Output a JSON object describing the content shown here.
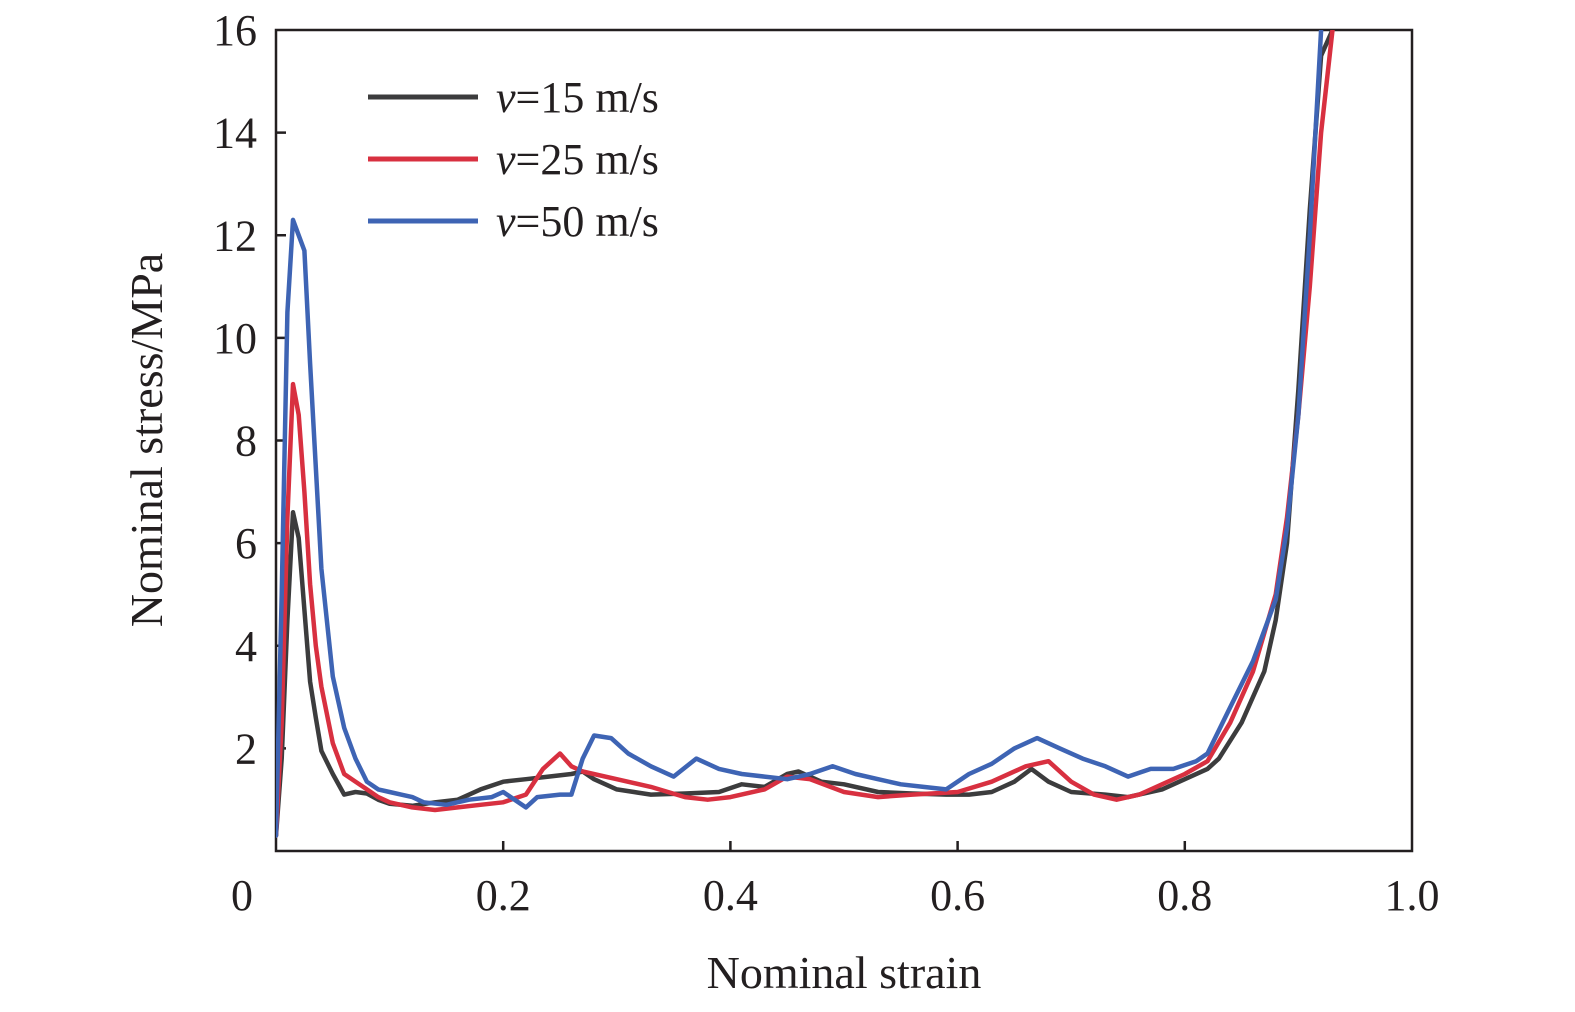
{
  "chart_data": {
    "type": "line",
    "xlabel": "Nominal strain",
    "ylabel": "Nominal stress/MPa",
    "xlim": [
      0,
      1.0
    ],
    "ylim": [
      0,
      16
    ],
    "x_ticks": [
      0,
      0.2,
      0.4,
      0.6,
      0.8,
      1.0
    ],
    "x_tick_labels": [
      "0",
      "0.2",
      "0.4",
      "0.6",
      "0.8",
      "1.0"
    ],
    "y_ticks": [
      2,
      4,
      6,
      8,
      10,
      12,
      14,
      16
    ],
    "y_tick_labels": [
      "2",
      "4",
      "6",
      "8",
      "10",
      "12",
      "14",
      "16"
    ],
    "grid": false,
    "legend_position": "top-left",
    "series": [
      {
        "name": "v=15 m/s",
        "legend_symbol": "v",
        "legend_text": "=15 m/s",
        "color": "#3c3c3d",
        "x": [
          0.0,
          0.005,
          0.01,
          0.015,
          0.02,
          0.025,
          0.03,
          0.035,
          0.04,
          0.05,
          0.06,
          0.07,
          0.08,
          0.09,
          0.1,
          0.12,
          0.14,
          0.16,
          0.18,
          0.2,
          0.22,
          0.24,
          0.26,
          0.27,
          0.28,
          0.3,
          0.33,
          0.36,
          0.39,
          0.41,
          0.43,
          0.45,
          0.46,
          0.48,
          0.5,
          0.53,
          0.56,
          0.59,
          0.61,
          0.63,
          0.65,
          0.665,
          0.68,
          0.7,
          0.73,
          0.75,
          0.78,
          0.8,
          0.82,
          0.83,
          0.85,
          0.87,
          0.88,
          0.89,
          0.9,
          0.91,
          0.92,
          0.93
        ],
        "values": [
          0.3,
          1.8,
          4.5,
          6.6,
          6.1,
          4.7,
          3.3,
          2.6,
          1.95,
          1.5,
          1.1,
          1.15,
          1.12,
          1.0,
          0.92,
          0.88,
          0.95,
          1.0,
          1.2,
          1.35,
          1.4,
          1.45,
          1.5,
          1.55,
          1.4,
          1.2,
          1.1,
          1.12,
          1.15,
          1.3,
          1.25,
          1.5,
          1.55,
          1.35,
          1.3,
          1.15,
          1.12,
          1.1,
          1.1,
          1.15,
          1.35,
          1.6,
          1.35,
          1.15,
          1.1,
          1.05,
          1.2,
          1.4,
          1.6,
          1.8,
          2.5,
          3.5,
          4.5,
          6.0,
          9.0,
          12.5,
          15.5,
          16.0
        ]
      },
      {
        "name": "v=25 m/s",
        "legend_symbol": "v",
        "legend_text": "=25 m/s",
        "color": "#d83040",
        "x": [
          0.0,
          0.005,
          0.01,
          0.015,
          0.02,
          0.025,
          0.03,
          0.035,
          0.04,
          0.05,
          0.06,
          0.07,
          0.08,
          0.09,
          0.1,
          0.12,
          0.14,
          0.16,
          0.18,
          0.2,
          0.22,
          0.235,
          0.25,
          0.26,
          0.27,
          0.3,
          0.33,
          0.36,
          0.38,
          0.4,
          0.43,
          0.45,
          0.47,
          0.5,
          0.53,
          0.56,
          0.6,
          0.63,
          0.66,
          0.68,
          0.7,
          0.72,
          0.74,
          0.76,
          0.78,
          0.8,
          0.82,
          0.84,
          0.86,
          0.88,
          0.89,
          0.9,
          0.91,
          0.92,
          0.93
        ],
        "values": [
          0.3,
          2.5,
          6.5,
          9.1,
          8.5,
          7.0,
          5.2,
          4.0,
          3.2,
          2.1,
          1.5,
          1.35,
          1.2,
          1.05,
          0.95,
          0.85,
          0.8,
          0.85,
          0.9,
          0.95,
          1.1,
          1.6,
          1.9,
          1.65,
          1.55,
          1.4,
          1.25,
          1.05,
          1.0,
          1.05,
          1.2,
          1.45,
          1.4,
          1.15,
          1.05,
          1.1,
          1.15,
          1.35,
          1.65,
          1.75,
          1.35,
          1.1,
          1.0,
          1.1,
          1.3,
          1.5,
          1.75,
          2.5,
          3.5,
          5.0,
          6.5,
          8.5,
          11.0,
          14.0,
          16.0
        ]
      },
      {
        "name": "v=50 m/s",
        "legend_symbol": "v",
        "legend_text": "=50 m/s",
        "color": "#3e64b4",
        "x": [
          0.0,
          0.005,
          0.01,
          0.015,
          0.02,
          0.025,
          0.03,
          0.04,
          0.05,
          0.06,
          0.07,
          0.08,
          0.09,
          0.1,
          0.11,
          0.12,
          0.13,
          0.15,
          0.17,
          0.19,
          0.2,
          0.21,
          0.22,
          0.23,
          0.25,
          0.26,
          0.27,
          0.28,
          0.295,
          0.31,
          0.33,
          0.35,
          0.37,
          0.39,
          0.41,
          0.43,
          0.45,
          0.47,
          0.49,
          0.51,
          0.53,
          0.55,
          0.57,
          0.59,
          0.61,
          0.63,
          0.65,
          0.67,
          0.69,
          0.71,
          0.73,
          0.75,
          0.77,
          0.79,
          0.81,
          0.82,
          0.84,
          0.86,
          0.88,
          0.89,
          0.9,
          0.91,
          0.92
        ],
        "values": [
          0.3,
          5.0,
          10.5,
          12.3,
          12.0,
          11.7,
          9.5,
          5.5,
          3.4,
          2.4,
          1.8,
          1.35,
          1.2,
          1.15,
          1.1,
          1.05,
          0.95,
          0.9,
          1.0,
          1.05,
          1.15,
          1.0,
          0.85,
          1.05,
          1.1,
          1.1,
          1.8,
          2.25,
          2.2,
          1.9,
          1.65,
          1.45,
          1.8,
          1.6,
          1.5,
          1.45,
          1.4,
          1.5,
          1.65,
          1.5,
          1.4,
          1.3,
          1.25,
          1.2,
          1.5,
          1.7,
          2.0,
          2.2,
          2.0,
          1.8,
          1.65,
          1.45,
          1.6,
          1.6,
          1.75,
          1.9,
          2.8,
          3.7,
          4.9,
          6.3,
          8.5,
          12.0,
          16.0
        ]
      }
    ]
  }
}
